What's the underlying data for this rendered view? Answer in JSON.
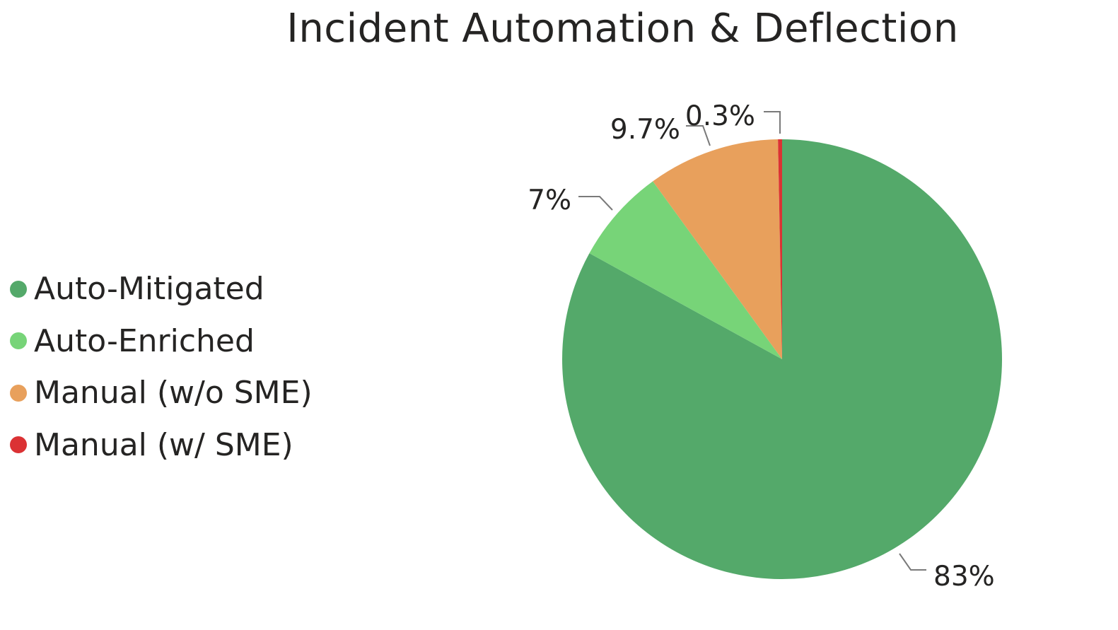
{
  "chart_data": {
    "type": "pie",
    "title": "Incident Automation & Deflection",
    "legend_position": "left",
    "start_angle_deg": 0,
    "direction": "clockwise",
    "slices": [
      {
        "name": "Auto-Mitigated",
        "value": 83,
        "label": "83%",
        "color": "#54A96A"
      },
      {
        "name": "Auto-Enriched",
        "value": 7,
        "label": "7%",
        "color": "#77D478"
      },
      {
        "name": "Manual (w/o SME)",
        "value": 9.7,
        "label": "9.7%",
        "color": "#E8A05C"
      },
      {
        "name": "Manual (w/ SME)",
        "value": 0.3,
        "label": "0.3%",
        "color": "#DB3234"
      }
    ]
  }
}
